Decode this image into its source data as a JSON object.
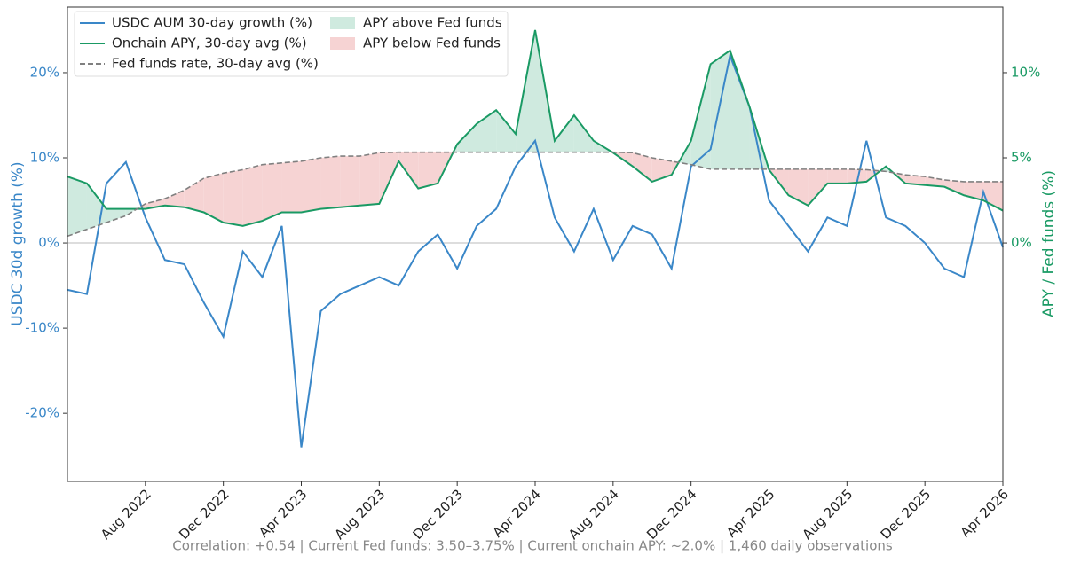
{
  "chart_data": {
    "type": "line",
    "x": [
      "2022-04",
      "2022-05",
      "2022-06",
      "2022-07",
      "2022-08",
      "2022-09",
      "2022-10",
      "2022-11",
      "2022-12",
      "2023-01",
      "2023-02",
      "2023-03",
      "2023-04",
      "2023-05",
      "2023-06",
      "2023-07",
      "2023-08",
      "2023-09",
      "2023-10",
      "2023-11",
      "2023-12",
      "2024-01",
      "2024-02",
      "2024-03",
      "2024-04",
      "2024-05",
      "2024-06",
      "2024-07",
      "2024-08",
      "2024-09",
      "2024-10",
      "2024-11",
      "2024-12",
      "2025-01",
      "2025-02",
      "2025-03",
      "2025-04",
      "2025-05",
      "2025-06",
      "2025-07",
      "2025-08",
      "2025-09",
      "2025-10",
      "2025-11",
      "2025-12",
      "2026-01",
      "2026-02",
      "2026-03",
      "2026-04"
    ],
    "xlim": [
      "2022-04",
      "2026-04"
    ],
    "xticks": [
      {
        "value": "2022-08",
        "label": "Aug 2022"
      },
      {
        "value": "2022-12",
        "label": "Dec 2022"
      },
      {
        "value": "2023-04",
        "label": "Apr 2023"
      },
      {
        "value": "2023-08",
        "label": "Aug 2023"
      },
      {
        "value": "2023-12",
        "label": "Dec 2023"
      },
      {
        "value": "2024-04",
        "label": "Apr 2024"
      },
      {
        "value": "2024-08",
        "label": "Aug 2024"
      },
      {
        "value": "2024-12",
        "label": "Dec 2024"
      },
      {
        "value": "2025-04",
        "label": "Apr 2025"
      },
      {
        "value": "2025-08",
        "label": "Aug 2025"
      },
      {
        "value": "2025-12",
        "label": "Dec 2025"
      },
      {
        "value": "2026-04",
        "label": "Apr 2026"
      }
    ],
    "ylabel": "USDC 30d growth (%)",
    "y2label": "APY / Fed funds (%)",
    "ylim": [
      -28,
      27.7
    ],
    "yticks": [
      {
        "value": -20,
        "label": "-20%"
      },
      {
        "value": -10,
        "label": "-10%"
      },
      {
        "value": 0,
        "label": "0%"
      },
      {
        "value": 10,
        "label": "10%"
      },
      {
        "value": 20,
        "label": "20%"
      }
    ],
    "y2lim": [
      -14,
      13.85
    ],
    "y2ticks": [
      {
        "value": 0,
        "label": "0%"
      },
      {
        "value": 5,
        "label": "5%"
      },
      {
        "value": 10,
        "label": "10%"
      }
    ],
    "zero_line": true,
    "series": [
      {
        "name": "USDC AUM 30-day growth (%)",
        "color": "#3a87c8",
        "axis": "y",
        "values": [
          -5.5,
          -6,
          7,
          9.5,
          3,
          -2,
          -2.5,
          -7,
          -11,
          -1,
          -4,
          2,
          -24,
          -8,
          -6,
          -5,
          -4,
          -5,
          -1,
          1,
          -3,
          2,
          4,
          9,
          12,
          3,
          -1,
          4,
          -2,
          2,
          1,
          -3,
          9,
          11,
          22,
          16,
          5,
          2,
          -1,
          3,
          2,
          12,
          3,
          2,
          0,
          -3,
          -4,
          6,
          -0.5
        ]
      },
      {
        "name": "Onchain APY, 30-day avg (%)",
        "color": "#1a9a64",
        "axis": "y2",
        "values": [
          3.9,
          3.5,
          2.0,
          2.0,
          2.0,
          2.2,
          2.1,
          1.8,
          1.2,
          1.0,
          1.3,
          1.8,
          1.8,
          2.0,
          2.1,
          2.2,
          2.3,
          4.8,
          3.2,
          3.5,
          5.8,
          7.0,
          7.8,
          6.4,
          12.5,
          6.0,
          7.5,
          6.0,
          5.3,
          4.5,
          3.6,
          4.0,
          6.0,
          10.5,
          11.3,
          8.0,
          4.3,
          2.8,
          2.2,
          3.5,
          3.5,
          3.6,
          4.5,
          3.5,
          3.4,
          3.3,
          2.8,
          2.5,
          1.9
        ]
      },
      {
        "name": "Fed funds rate, 30-day avg (%)",
        "color": "#808080",
        "axis": "y2",
        "dashed": true,
        "values": [
          0.4,
          0.8,
          1.2,
          1.6,
          2.3,
          2.6,
          3.1,
          3.8,
          4.1,
          4.3,
          4.6,
          4.7,
          4.8,
          5.0,
          5.1,
          5.1,
          5.3,
          5.33,
          5.33,
          5.33,
          5.33,
          5.33,
          5.33,
          5.33,
          5.33,
          5.33,
          5.33,
          5.33,
          5.33,
          5.3,
          5.0,
          4.8,
          4.6,
          4.33,
          4.33,
          4.33,
          4.33,
          4.33,
          4.33,
          4.33,
          4.33,
          4.3,
          4.2,
          4.0,
          3.9,
          3.7,
          3.6,
          3.6,
          3.6
        ]
      }
    ],
    "fills": [
      {
        "name": "APY above Fed funds",
        "color": "#cfeadf"
      },
      {
        "name": "APY below Fed funds",
        "color": "#f6d3d3"
      }
    ],
    "footer": "Correlation: +0.54   |   Current Fed funds: 3.50–3.75%   |   Current onchain APY: ~2.0%   |   1,460 daily observations"
  }
}
